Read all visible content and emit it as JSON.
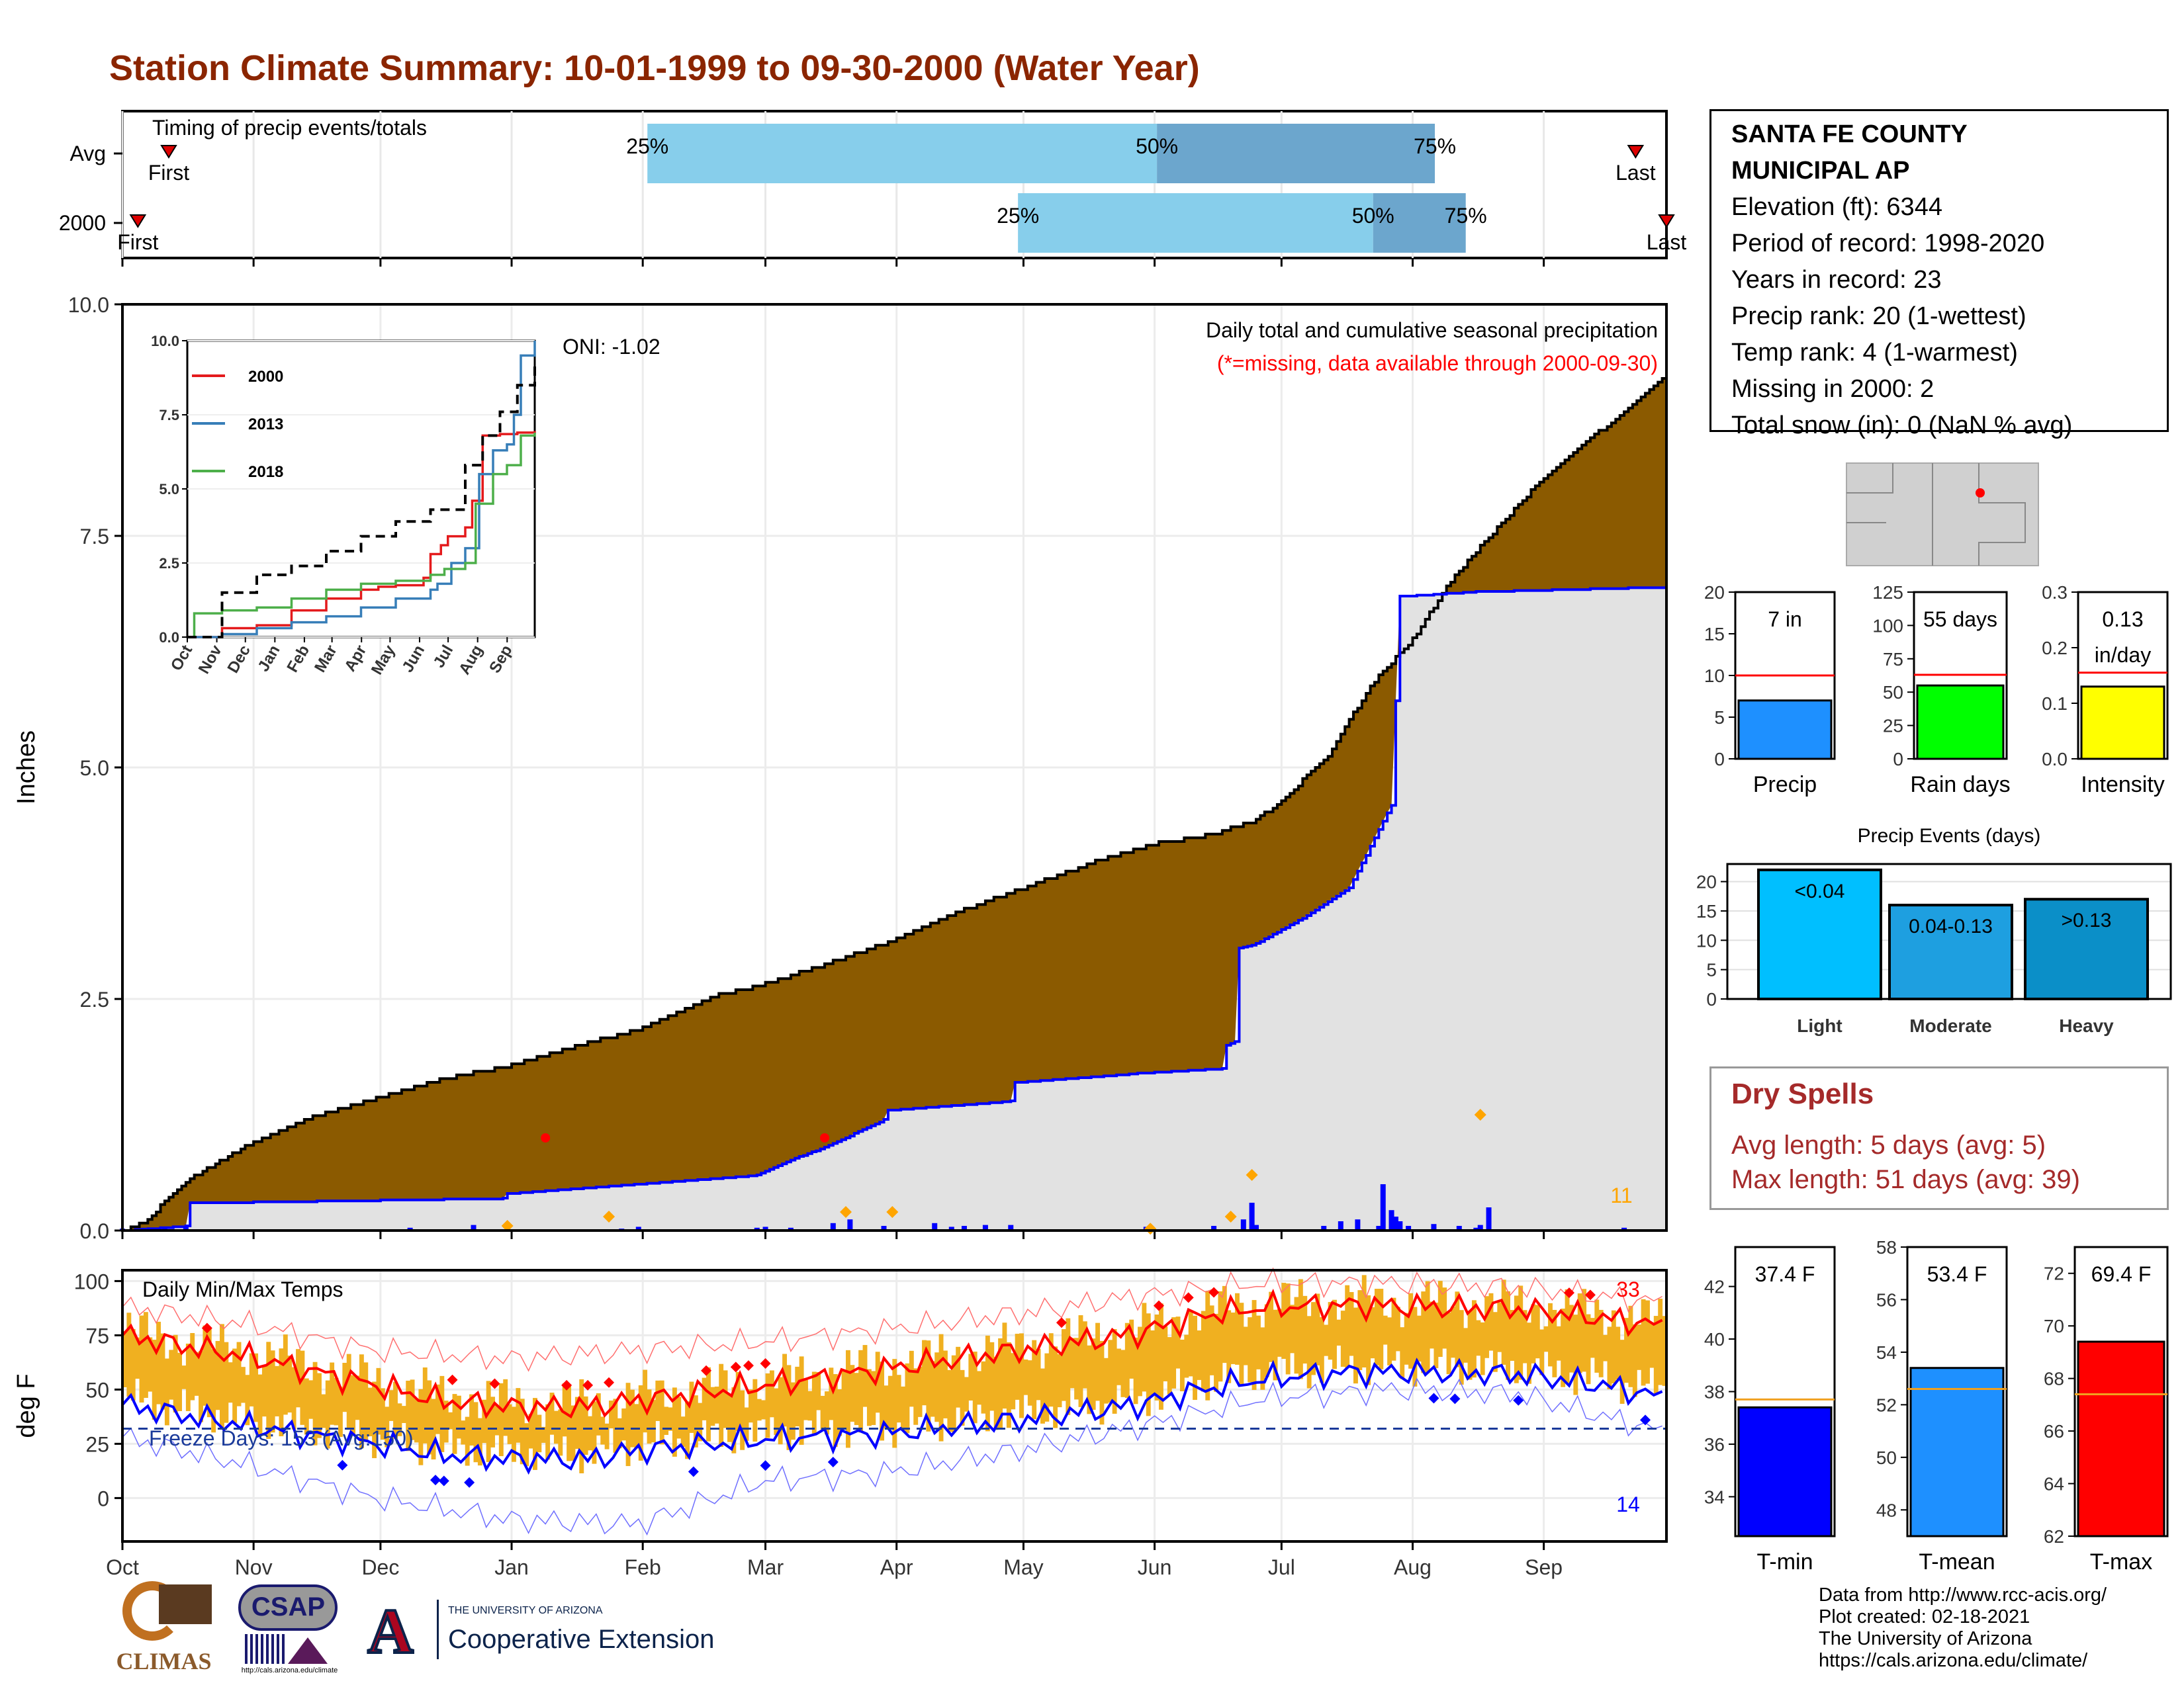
{
  "title": "Station Climate Summary: 10-01-1999 to 09-30-2000 (Water Year)",
  "station": {
    "name": "SANTA FE COUNTY",
    "name2": "MUNICIPAL AP",
    "elevation": "Elevation (ft): 6344",
    "period": "Period of record: 1998-2020",
    "years": "Years in record: 23",
    "precip_rank": "Precip rank: 20 (1-wettest)",
    "temp_rank": "Temp rank: 4 (1-warmest)",
    "missing": "Missing in 2000: 2",
    "snow": "Total snow (in): 0 (NaN % avg)"
  },
  "dry_spells": {
    "title": "Dry Spells",
    "avg": "Avg length: 5 days (avg: 5)",
    "max": "Max length: 51 days (avg: 39)"
  },
  "credits": {
    "l1": "Data from http://www.rcc-acis.org/",
    "l2": "Plot created: 02-18-2021",
    "l3": "The University of Arizona",
    "l4": "https://cals.arizona.edu/climate/"
  },
  "logos": {
    "climas": "CLIMAS",
    "csap": "CSAP",
    "csap_url": "http://cals.arizona.edu/climate",
    "ua_small": "THE UNIVERSITY OF ARIZONA",
    "ua_big": "Cooperative Extension"
  },
  "colors": {
    "title": "#8B2500",
    "brown": "#8B5A00",
    "blue": "#0000FF",
    "light_blue": "#87CEEB",
    "med_blue": "#6CA6CD",
    "orange": "#F0B020",
    "red": "#FF0000"
  },
  "chart_data": [
    {
      "id": "timing",
      "type": "bar",
      "title": "Timing of precip events/totals",
      "rows": [
        {
          "label": "Avg",
          "first": "First",
          "last": "Last",
          "p25": 0.34,
          "p50": 0.67,
          "p75": 0.85,
          "first_pos": 0.03,
          "last_pos": 0.98
        },
        {
          "label": "2000",
          "first": "First",
          "last": "Last",
          "p25": 0.58,
          "p50": 0.81,
          "p75": 0.87,
          "first_pos": 0.01,
          "last_pos": 1.0
        }
      ],
      "pct_labels": [
        "25%",
        "50%",
        "75%"
      ]
    },
    {
      "id": "precip",
      "type": "area",
      "title": "Daily total and cumulative seasonal precipitation",
      "subtitle": "(*=missing, data available through 2000-09-30)",
      "annotation": "ONI: -1.02",
      "ylabel": "Inches",
      "ylim": [
        0,
        10
      ],
      "yticks": [
        "0.0",
        "2.5",
        "5.0",
        "7.5",
        "10.0"
      ],
      "months": [
        "Oct",
        "Nov",
        "Dec",
        "Jan",
        "Feb",
        "Mar",
        "Apr",
        "May",
        "Jun",
        "Jul",
        "Aug",
        "Sep"
      ],
      "avg_cumulative": {
        "day": [
          0,
          5,
          15,
          30,
          45,
          60,
          75,
          92,
          110,
          123,
          140,
          152,
          170,
          182,
          200,
          212,
          230,
          245,
          258,
          268,
          275,
          285,
          295,
          305,
          315,
          325,
          335,
          345,
          355,
          365
        ],
        "value": [
          0,
          0.1,
          0.55,
          0.95,
          1.25,
          1.45,
          1.65,
          1.8,
          2.05,
          2.2,
          2.55,
          2.68,
          2.95,
          3.15,
          3.5,
          3.7,
          4.0,
          4.2,
          4.3,
          4.45,
          4.7,
          5.15,
          5.9,
          6.4,
          7.1,
          7.6,
          8.1,
          8.5,
          8.85,
          9.25
        ]
      },
      "cumulative_2000": {
        "day": [
          0,
          15,
          16,
          90,
          91,
          150,
          160,
          166,
          180,
          181,
          210,
          211,
          240,
          260,
          261,
          263,
          264,
          268,
          280,
          290,
          300,
          302,
          320,
          365
        ],
        "value": [
          0,
          0.05,
          0.3,
          0.35,
          0.4,
          0.6,
          0.8,
          0.9,
          1.2,
          1.3,
          1.4,
          1.6,
          1.7,
          1.75,
          2.0,
          2.05,
          3.05,
          3.1,
          3.4,
          3.7,
          4.6,
          6.85,
          6.9,
          6.95
        ]
      },
      "daily_bars": {
        "day": [
          0,
          5,
          10,
          15,
          68,
          83,
          118,
          122,
          150,
          152,
          158,
          168,
          172,
          180,
          192,
          196,
          199,
          204,
          210,
          242,
          243,
          258,
          265,
          267,
          268,
          284,
          288,
          292,
          297,
          298,
          300,
          301,
          302,
          304,
          310,
          316,
          320,
          323,
          321,
          355
        ],
        "value": [
          0.02,
          0.03,
          0.04,
          0.05,
          0.03,
          0.06,
          0.02,
          0.04,
          0.03,
          0.04,
          0.03,
          0.08,
          0.12,
          0.05,
          0.08,
          0.04,
          0.05,
          0.06,
          0.06,
          0.04,
          0.02,
          0.05,
          0.12,
          0.3,
          0.06,
          0.05,
          0.1,
          0.12,
          0.05,
          0.5,
          0.22,
          0.15,
          0.1,
          0.05,
          0.07,
          0.05,
          0.03,
          0.25,
          0.06,
          0.03
        ]
      },
      "missing_marks": {
        "day": [
          100,
          166
        ],
        "value": [
          1.0,
          1.0
        ]
      },
      "orange_marks": {
        "day": [
          91,
          115,
          171,
          182,
          243,
          262,
          267,
          321
        ],
        "value": [
          0.05,
          0.15,
          0.2,
          0.2,
          0.02,
          0.15,
          0.6,
          1.25
        ]
      },
      "count_label": "11"
    },
    {
      "id": "inset",
      "type": "line",
      "yticks": [
        "0.0",
        "2.5",
        "5.0",
        "7.5",
        "10.0"
      ],
      "months": [
        "Oct",
        "Nov",
        "Dec",
        "Jan",
        "Feb",
        "Mar",
        "Apr",
        "May",
        "Jun",
        "Jul",
        "Aug",
        "Sep"
      ],
      "series": [
        {
          "name": "2000",
          "color": "#E41A1C",
          "x": [
            0,
            0.1,
            0.2,
            0.3,
            0.4,
            0.5,
            0.55,
            0.6,
            0.68,
            0.7,
            0.73,
            0.75,
            0.8,
            0.82,
            0.85,
            0.9,
            0.95,
            1.0
          ],
          "y": [
            0,
            0.3,
            0.4,
            0.9,
            1.3,
            1.6,
            1.7,
            1.75,
            2.0,
            2.8,
            3.1,
            3.4,
            3.7,
            4.6,
            6.8,
            6.85,
            6.9,
            6.95
          ]
        },
        {
          "name": "2013",
          "color": "#377EB8",
          "x": [
            0,
            0.1,
            0.2,
            0.3,
            0.4,
            0.5,
            0.6,
            0.7,
            0.72,
            0.76,
            0.8,
            0.84,
            0.88,
            0.92,
            0.94,
            0.96,
            1.0
          ],
          "y": [
            0,
            0.1,
            0.3,
            0.5,
            0.7,
            1.0,
            1.3,
            1.6,
            1.8,
            2.5,
            3.0,
            5.5,
            6.3,
            6.5,
            7.5,
            9.5,
            10.0
          ]
        },
        {
          "name": "2018",
          "color": "#4DAF4A",
          "x": [
            0,
            0.02,
            0.1,
            0.2,
            0.3,
            0.4,
            0.5,
            0.6,
            0.7,
            0.74,
            0.8,
            0.83,
            0.88,
            0.92,
            0.96,
            1.0
          ],
          "y": [
            0,
            0.8,
            0.9,
            1.0,
            1.3,
            1.6,
            1.8,
            1.9,
            2.1,
            2.3,
            2.5,
            4.5,
            5.5,
            5.8,
            6.8,
            6.9
          ]
        },
        {
          "name": "Avg",
          "color": "#000000",
          "x": [
            0,
            0.1,
            0.2,
            0.3,
            0.4,
            0.5,
            0.6,
            0.7,
            0.8,
            0.85,
            0.9,
            0.95,
            1.0
          ],
          "y": [
            0,
            1.5,
            2.1,
            2.4,
            2.9,
            3.4,
            3.9,
            4.3,
            5.8,
            6.8,
            7.6,
            8.5,
            9.2
          ],
          "dashed": true
        }
      ],
      "legend": [
        "2000",
        "2013",
        "2018"
      ]
    },
    {
      "id": "temps",
      "type": "line",
      "title": "Daily Min/Max Temps",
      "ylabel": "deg F",
      "ylim": [
        -20,
        105
      ],
      "yticks": [
        "0",
        "25",
        "50",
        "75",
        "100"
      ],
      "months": [
        "Oct",
        "Nov",
        "Dec",
        "Jan",
        "Feb",
        "Mar",
        "Apr",
        "May",
        "Jun",
        "Jul",
        "Aug",
        "Sep"
      ],
      "freeze_line": 32,
      "freeze_label": "Freeze Days: 153 (Avg:150)",
      "hot_count": "33",
      "cold_count": "14",
      "avg_max": {
        "day": [
          0,
          30,
          60,
          75,
          92,
          110,
          122,
          152,
          182,
          212,
          240,
          255,
          270,
          290,
          310,
          330,
          350,
          365
        ],
        "value": [
          75,
          65,
          52,
          45,
          42,
          42,
          45,
          52,
          60,
          68,
          76,
          84,
          88,
          89,
          88,
          87,
          83,
          79
        ]
      },
      "avg_min": {
        "day": [
          0,
          30,
          60,
          75,
          92,
          110,
          122,
          152,
          182,
          212,
          240,
          255,
          270,
          290,
          310,
          330,
          350,
          365
        ],
        "value": [
          43,
          33,
          25,
          20,
          18,
          18,
          22,
          27,
          30,
          36,
          43,
          50,
          55,
          58,
          58,
          57,
          52,
          46
        ]
      },
      "rec_max": {
        "day": [
          0,
          30,
          60,
          92,
          122,
          152,
          182,
          212,
          240,
          270,
          300,
          330,
          365
        ],
        "value": [
          88,
          80,
          68,
          64,
          68,
          72,
          78,
          85,
          93,
          99,
          99,
          97,
          90
        ]
      },
      "rec_min": {
        "day": [
          0,
          30,
          60,
          92,
          122,
          152,
          182,
          212,
          240,
          270,
          300,
          330,
          365
        ],
        "value": [
          28,
          15,
          0,
          -10,
          -12,
          8,
          12,
          22,
          33,
          46,
          50,
          48,
          30
        ]
      }
    },
    {
      "id": "summary_precip",
      "type": "bar",
      "panels": [
        {
          "category": "Precip",
          "value": 7,
          "avg": 10,
          "label": "7 in",
          "ymax": 20,
          "yticks": [
            "0",
            "5",
            "10",
            "15",
            "20"
          ],
          "color": "#1E90FF"
        },
        {
          "category": "Rain days",
          "value": 55,
          "avg": 63,
          "label": "55 days",
          "ymax": 125,
          "yticks": [
            "0",
            "25",
            "50",
            "75",
            "100",
            "125"
          ],
          "color": "#00FF00"
        },
        {
          "category": "Intensity",
          "value": 0.13,
          "avg": 0.155,
          "label": "0.13",
          "label2": "in/day",
          "ymax": 0.3,
          "yticks": [
            "0.0",
            "0.1",
            "0.2",
            "0.3"
          ],
          "color": "#FFFF00"
        }
      ]
    },
    {
      "id": "precip_events",
      "type": "bar",
      "title": "Precip Events (days)",
      "categories": [
        "Light",
        "Moderate",
        "Heavy"
      ],
      "values": [
        22,
        16,
        17
      ],
      "bar_labels": [
        "<0.04",
        "0.04-0.13",
        ">0.13"
      ],
      "yticks": [
        "0",
        "5",
        "10",
        "15",
        "20"
      ],
      "ylim": [
        0,
        23
      ],
      "colors": [
        "#00BFFF",
        "#1E9FE0",
        "#0B8FC8"
      ]
    },
    {
      "id": "summary_temps",
      "type": "bar",
      "panels": [
        {
          "category": "T-min",
          "value": 37.4,
          "avg": 37.7,
          "label": "37.4 F",
          "ylim": [
            32.5,
            43.5
          ],
          "yticks": [
            "34",
            "36",
            "38",
            "40",
            "42"
          ],
          "color": "#0000FF"
        },
        {
          "category": "T-mean",
          "value": 53.4,
          "avg": 52.6,
          "label": "53.4 F",
          "ylim": [
            47,
            58
          ],
          "yticks": [
            "48",
            "50",
            "52",
            "54",
            "56",
            "58"
          ],
          "color": "#1E90FF"
        },
        {
          "category": "T-max",
          "value": 69.4,
          "avg": 67.4,
          "label": "69.4 F",
          "ylim": [
            62,
            73
          ],
          "yticks": [
            "62",
            "64",
            "66",
            "68",
            "70",
            "72"
          ],
          "color": "#FF0000"
        }
      ]
    }
  ]
}
